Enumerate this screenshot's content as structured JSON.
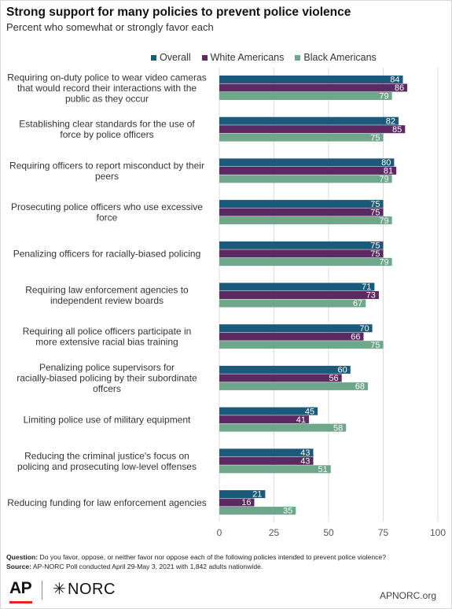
{
  "title": "Strong support for many policies to prevent police violence",
  "subtitle": "Percent who somewhat or strongly favor each",
  "question_label": "Question:",
  "question_text": "Do you favor, oppose, or neither favor nor oppose each of the following policies intended to prevent police violence?",
  "source_label": "Source:",
  "source_text": "AP-NORC Poll conducted April 29-May 3, 2021 with 1,842 adults nationwide.",
  "logo_ap": "AP",
  "logo_norc": "NORC",
  "url": "APNORC.org",
  "colors": {
    "overall": "#1b5a7a",
    "white": "#5b2a63",
    "black": "#6fa78b"
  },
  "chart_data": {
    "type": "bar",
    "orientation": "horizontal",
    "xlim": [
      0,
      100
    ],
    "xticks": [
      0,
      25,
      50,
      75,
      100
    ],
    "grid": true,
    "legend_position": "top",
    "categories": [
      "Requiring on-duty police to wear video cameras that would record their interactions with the public as they occur",
      "Establishing clear standards for the use of force by police officers",
      "Requiring officers to report misconduct by their peers",
      "Prosecuting police officers who use excessive force",
      "Penalizing officers for racially-biased policing",
      "Requiring law enforcement agencies to independent review boards",
      "Requiring all police officers participate in more extensive racial bias training",
      "Penalizing police supervisors for racially-biased policing by their subordinate offcers",
      "Limiting police use of military equipment",
      "Reducing the criminal justice's focus on policing and prosecuting low-level offenses",
      "Reducing funding for law enforcement agencies"
    ],
    "series": [
      {
        "name": "Overall",
        "color": "#1b5a7a",
        "values": [
          84,
          82,
          80,
          75,
          75,
          71,
          70,
          60,
          45,
          43,
          21
        ]
      },
      {
        "name": "White Americans",
        "color": "#5b2a63",
        "values": [
          86,
          85,
          81,
          75,
          75,
          73,
          66,
          56,
          41,
          43,
          16
        ]
      },
      {
        "name": "Black Americans",
        "color": "#6fa78b",
        "values": [
          79,
          75,
          79,
          79,
          79,
          67,
          75,
          68,
          58,
          51,
          35
        ]
      }
    ]
  }
}
